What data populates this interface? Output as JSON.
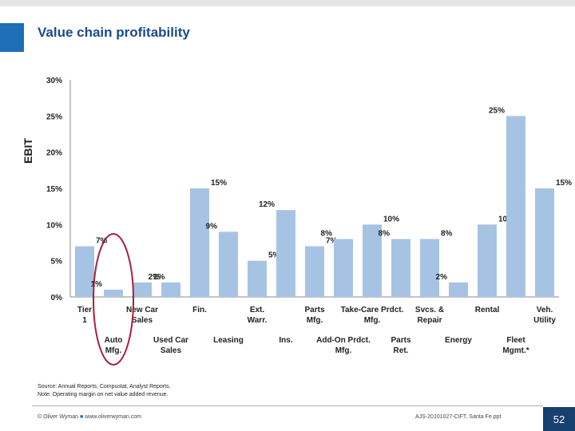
{
  "slide": {
    "title": "Value chain profitability",
    "note_source": "Source: Annual Reports, Compustat, Analyst Reports.",
    "note_margin": "Note: Operating margin on net value added revenue.",
    "footer_company": "© Oliver Wyman",
    "footer_url": "www.oliverwyman.com",
    "doc_ref": "AJS-20101027-CIFT, Santa Fe.ppt",
    "page_number": "52"
  },
  "colors": {
    "bar": "#a7c3e4",
    "accent": "#1e6fb8",
    "title": "#1a4b8c",
    "highlight": "#a3223a"
  },
  "chart_data": {
    "type": "bar",
    "ylabel": "EBIT",
    "ylim": [
      0,
      30
    ],
    "y_ticks": [
      "0%",
      "5%",
      "10%",
      "15%",
      "20%",
      "25%",
      "30%"
    ],
    "categories": [
      "Tier 1",
      "Auto Mfg.",
      "New Car Sales",
      "Used Car Sales",
      "Fin.",
      "Leasing",
      "Ext. Warr.",
      "Ins.",
      "Parts Mfg.",
      "Add-On Prdct. Mfg.",
      "Take-Care Prdct. Mfg.",
      "Parts Ret.",
      "Svcs. & Repair",
      "Energy",
      "Rental",
      "Fleet Mgmt.*",
      "Veh. Utility"
    ],
    "values": [
      7,
      1,
      2,
      2,
      15,
      9,
      5,
      12,
      7,
      8,
      10,
      8,
      8,
      2,
      10,
      25,
      15
    ],
    "value_labels": [
      "7%",
      "1%",
      "2%",
      "2%",
      "15%",
      "9%",
      "5%",
      "12%",
      "7%",
      "8%",
      "10%",
      "8%",
      "8%",
      "2%",
      "10%",
      "25%",
      "15%"
    ],
    "highlight": "Auto Mfg."
  }
}
